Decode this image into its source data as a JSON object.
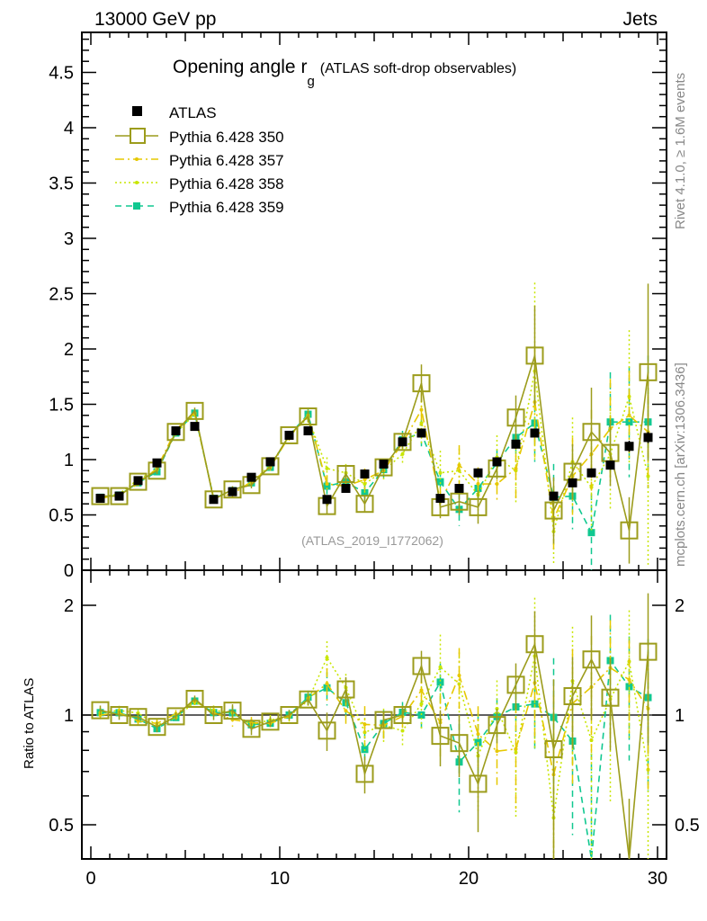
{
  "header": {
    "left": "13000 GeV pp",
    "right": "Jets"
  },
  "side_labels": {
    "rivet": "Rivet 4.1.0, ≥ 1.6M events",
    "mcplots": "mcplots.cern.ch [arXiv:1306.3436]"
  },
  "chart_data": {
    "type": "scatter",
    "title": "Opening angle r",
    "title_sub": "g",
    "title_suffix": "(ATLAS soft-drop observables)",
    "analysis_label": "(ATLAS_2019_I1772062)",
    "ratio_ylabel": "Ratio to ATLAS",
    "xlim": [
      -0.5,
      30.5
    ],
    "ylim": [
      0,
      4.85
    ],
    "ratio_ylim": [
      0.4,
      2.5
    ],
    "x_ticks": [
      "0",
      "10",
      "20",
      "30"
    ],
    "y_ticks": [
      "0",
      "0.5",
      "1",
      "1.5",
      "2",
      "2.5",
      "3",
      "3.5",
      "4",
      "4.5"
    ],
    "ratio_ticks": [
      "0.5",
      "1",
      "2"
    ],
    "legend_placement": "top-left",
    "x": [
      0.5,
      1.5,
      2.5,
      3.5,
      4.5,
      5.5,
      6.5,
      7.5,
      8.5,
      9.5,
      10.5,
      11.5,
      12.5,
      13.5,
      14.5,
      15.5,
      16.5,
      17.5,
      18.5,
      19.5,
      20.5,
      21.5,
      22.5,
      23.5,
      24.5,
      25.5,
      26.5,
      27.5,
      28.5,
      29.5
    ],
    "series": [
      {
        "name": "ATLAS",
        "color": "#000000",
        "style": "data",
        "values": [
          0.65,
          0.67,
          0.81,
          0.97,
          1.26,
          1.3,
          0.64,
          0.71,
          0.84,
          0.98,
          1.22,
          1.26,
          0.64,
          0.74,
          0.87,
          0.96,
          1.16,
          1.24,
          0.65,
          0.74,
          0.88,
          0.98,
          1.14,
          1.24,
          0.67,
          0.79,
          0.88,
          0.95,
          1.12,
          1.2
        ],
        "errors": [
          0.01,
          0.01,
          0.01,
          0.01,
          0.02,
          0.02,
          0.01,
          0.01,
          0.01,
          0.02,
          0.02,
          0.02,
          0.02,
          0.02,
          0.02,
          0.02,
          0.03,
          0.03,
          0.02,
          0.03,
          0.03,
          0.03,
          0.04,
          0.04,
          0.03,
          0.03,
          0.04,
          0.04,
          0.05,
          0.05
        ]
      },
      {
        "name": "Pythia 6.428 350",
        "color": "#9c9c1c",
        "style": "solid",
        "values": [
          0.67,
          0.67,
          0.8,
          0.9,
          1.25,
          1.44,
          0.64,
          0.73,
          0.77,
          0.94,
          1.22,
          1.39,
          0.58,
          0.87,
          0.6,
          0.93,
          1.16,
          1.69,
          0.57,
          0.62,
          0.57,
          0.92,
          1.38,
          1.94,
          0.54,
          0.89,
          1.25,
          1.06,
          0.36,
          1.79
        ],
        "errors": [
          0.02,
          0.02,
          0.02,
          0.03,
          0.03,
          0.03,
          0.02,
          0.03,
          0.03,
          0.03,
          0.04,
          0.05,
          0.07,
          0.07,
          0.07,
          0.05,
          0.06,
          0.17,
          0.1,
          0.12,
          0.15,
          0.1,
          0.2,
          0.45,
          0.3,
          0.25,
          0.4,
          0.3,
          0.3,
          0.8
        ]
      },
      {
        "name": "Pythia 6.428 357",
        "color": "#e6c800",
        "style": "dashdot",
        "values": [
          0.65,
          0.68,
          0.78,
          0.92,
          1.27,
          1.42,
          0.65,
          0.69,
          0.8,
          0.93,
          1.21,
          1.4,
          0.78,
          0.76,
          0.82,
          0.9,
          1.15,
          1.45,
          0.62,
          0.95,
          0.78,
          0.78,
          0.92,
          1.52,
          0.46,
          0.85,
          1.05,
          1.28,
          1.4,
          1.25
        ],
        "errors": [
          0.02,
          0.02,
          0.02,
          0.03,
          0.03,
          0.03,
          0.02,
          0.03,
          0.03,
          0.03,
          0.04,
          0.05,
          0.08,
          0.07,
          0.1,
          0.08,
          0.08,
          0.15,
          0.12,
          0.18,
          0.15,
          0.15,
          0.3,
          0.5,
          0.3,
          0.35,
          0.4,
          0.45,
          0.4,
          0.5
        ]
      },
      {
        "name": "Pythia 6.428 358",
        "color": "#c8e600",
        "style": "dotted",
        "values": [
          0.66,
          0.69,
          0.82,
          0.91,
          1.24,
          1.41,
          0.66,
          0.72,
          0.79,
          0.95,
          1.21,
          1.38,
          0.92,
          0.88,
          0.78,
          0.9,
          1.05,
          1.33,
          0.88,
          0.9,
          0.68,
          1.02,
          0.9,
          1.8,
          0.35,
          0.98,
          0.75,
          1.05,
          1.57,
          0.85
        ],
        "errors": [
          0.02,
          0.02,
          0.02,
          0.03,
          0.03,
          0.03,
          0.02,
          0.03,
          0.03,
          0.03,
          0.04,
          0.05,
          0.1,
          0.08,
          0.1,
          0.1,
          0.1,
          0.2,
          0.2,
          0.2,
          0.2,
          0.2,
          0.3,
          0.8,
          0.3,
          0.4,
          0.4,
          0.5,
          0.6,
          0.8
        ]
      },
      {
        "name": "Pythia 6.428 359",
        "color": "#10c890",
        "style": "dashed",
        "values": [
          0.66,
          0.68,
          0.79,
          0.89,
          1.24,
          1.42,
          0.65,
          0.72,
          0.79,
          0.93,
          1.22,
          1.41,
          0.76,
          0.8,
          0.7,
          0.91,
          1.18,
          1.24,
          0.8,
          0.55,
          0.74,
          0.97,
          1.2,
          1.33,
          0.66,
          0.67,
          0.34,
          1.34,
          1.34,
          1.34
        ],
        "errors": [
          0.02,
          0.02,
          0.02,
          0.03,
          0.03,
          0.03,
          0.02,
          0.03,
          0.03,
          0.03,
          0.04,
          0.06,
          0.08,
          0.07,
          0.08,
          0.08,
          0.08,
          0.12,
          0.1,
          0.15,
          0.15,
          0.12,
          0.2,
          0.35,
          0.3,
          0.3,
          0.35,
          0.45,
          0.5,
          0.6
        ]
      }
    ]
  }
}
